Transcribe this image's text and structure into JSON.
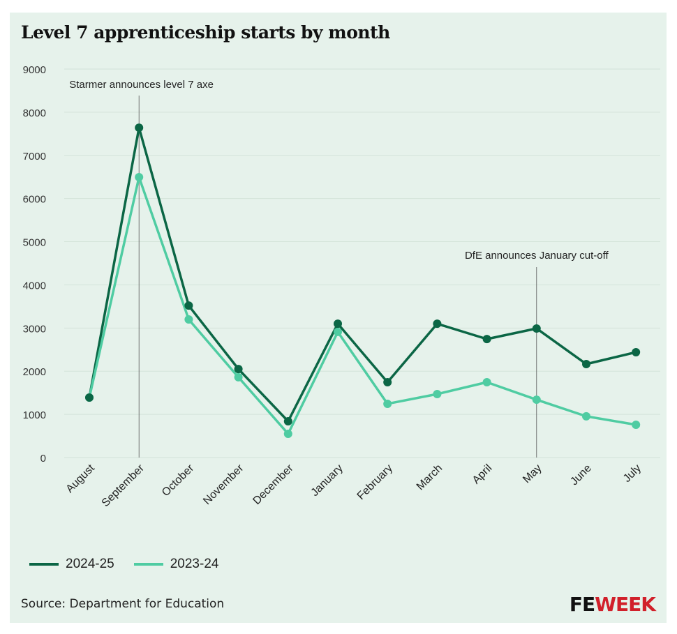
{
  "chart_data": {
    "type": "line",
    "title": "Level 7 apprenticeship starts by month",
    "categories": [
      "August",
      "September",
      "October",
      "November",
      "December",
      "January",
      "February",
      "March",
      "April",
      "May",
      "June",
      "July"
    ],
    "series": [
      {
        "name": "2024-25",
        "color": "#0b6645",
        "values": [
          1390,
          7640,
          3520,
          2050,
          840,
          3100,
          1745,
          3100,
          2745,
          2990,
          2165,
          2440
        ]
      },
      {
        "name": "2023-24",
        "color": "#4fcca2",
        "values": [
          1390,
          6495,
          3200,
          1860,
          550,
          2910,
          1245,
          1470,
          1745,
          1340,
          955,
          760
        ]
      }
    ],
    "ylim": [
      0,
      9000
    ],
    "yticks": [
      0,
      1000,
      2000,
      3000,
      4000,
      5000,
      6000,
      7000,
      8000,
      9000
    ],
    "grid": true,
    "legend": "bottom-left",
    "annotations": [
      {
        "category": "September",
        "text": "Starmer announces level 7 axe"
      },
      {
        "category": "May",
        "text": "DfE announces January cut-off"
      }
    ]
  },
  "footer": {
    "source": "Source: Department for Education",
    "logo_fe": "FE",
    "logo_week": "WEEK"
  }
}
